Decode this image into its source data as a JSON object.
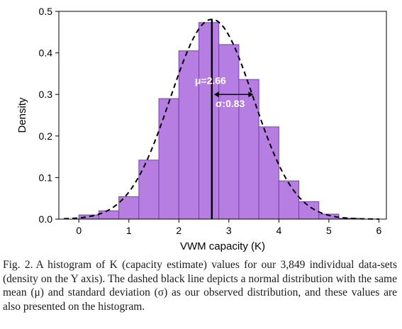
{
  "chart_data": {
    "type": "bar",
    "xlabel": "VWM capacity (K)",
    "ylabel": "Density",
    "xlim": [
      -0.4,
      6.15
    ],
    "ylim": [
      0,
      0.5
    ],
    "xticks": [
      0,
      1,
      2,
      3,
      4,
      5,
      6
    ],
    "yticks": [
      0.0,
      0.1,
      0.2,
      0.3,
      0.4,
      0.5
    ],
    "xtick_labels": [
      "0",
      "1",
      "2",
      "3",
      "4",
      "5",
      "6"
    ],
    "ytick_labels": [
      "0.0",
      "0.1",
      "0.2",
      "0.3",
      "0.4",
      "0.5"
    ],
    "bar_color": "#b57ee0",
    "bar_edge_color": "#7a3fb0",
    "bins": [
      {
        "x0": 0.0,
        "x1": 0.4,
        "density": 0.01
      },
      {
        "x0": 0.4,
        "x1": 0.8,
        "density": 0.02
      },
      {
        "x0": 0.8,
        "x1": 1.2,
        "density": 0.054
      },
      {
        "x0": 1.2,
        "x1": 1.6,
        "density": 0.142
      },
      {
        "x0": 1.6,
        "x1": 2.0,
        "density": 0.29
      },
      {
        "x0": 2.0,
        "x1": 2.4,
        "density": 0.405
      },
      {
        "x0": 2.4,
        "x1": 2.8,
        "density": 0.473
      },
      {
        "x0": 2.8,
        "x1": 3.2,
        "density": 0.42
      },
      {
        "x0": 3.2,
        "x1": 3.6,
        "density": 0.336
      },
      {
        "x0": 3.6,
        "x1": 4.0,
        "density": 0.222
      },
      {
        "x0": 4.0,
        "x1": 4.4,
        "density": 0.092
      },
      {
        "x0": 4.4,
        "x1": 4.8,
        "density": 0.042
      },
      {
        "x0": 4.8,
        "x1": 5.2,
        "density": 0.012
      },
      {
        "x0": 5.2,
        "x1": 5.6,
        "density": 0.002
      }
    ],
    "normal": {
      "mean": 2.66,
      "sd": 0.83
    },
    "mean_line": 2.66,
    "annotations": {
      "mu": "μ=2.66",
      "sigma": "σ:0.83"
    }
  },
  "caption": {
    "label": "Fig. 2.",
    "text": "A histogram of K (capacity estimate) values for our 3,849 individual data-sets (density on the Y axis). The dashed black line depicts a normal distribution with the same mean (μ) and standard deviation (σ) as our observed distribution, and these values are also presented on the histogram."
  }
}
